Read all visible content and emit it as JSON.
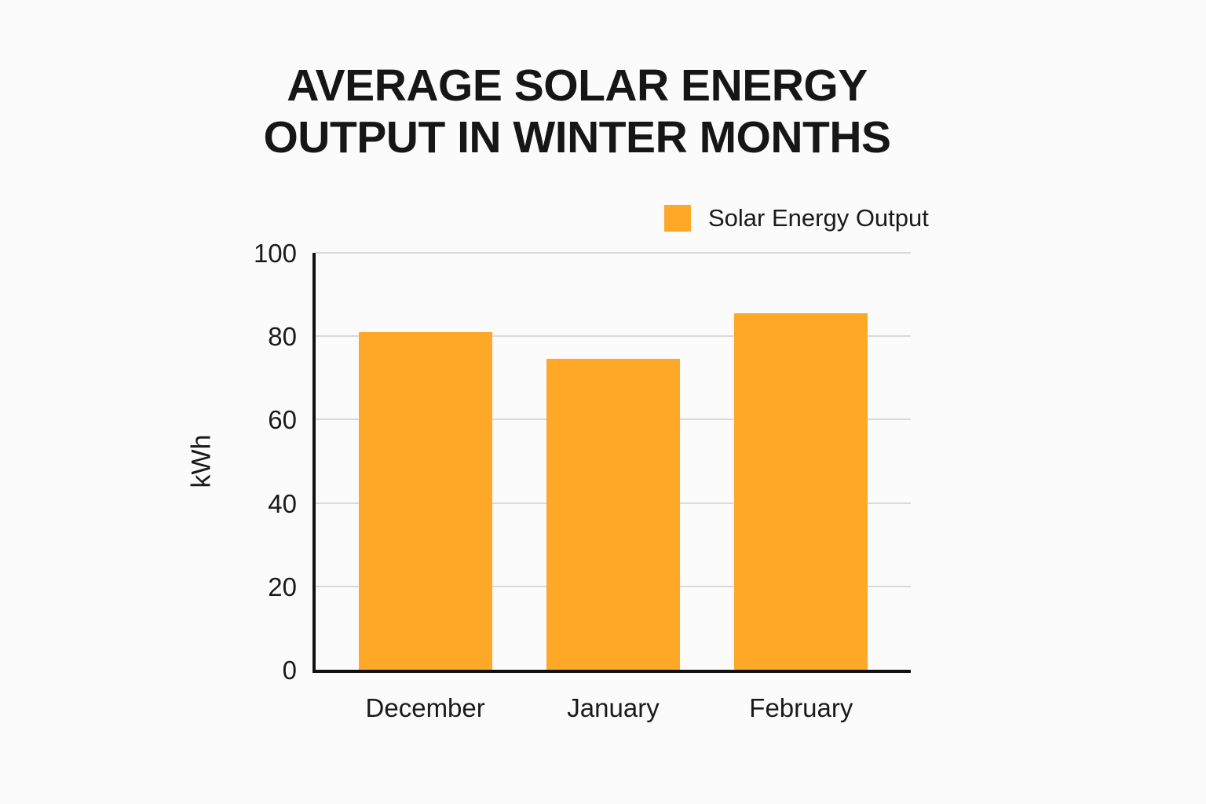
{
  "title": {
    "line1": "AVERAGE SOLAR ENERGY",
    "line2": "OUTPUT IN WINTER MONTHS"
  },
  "legend": {
    "label": "Solar Energy Output",
    "swatch_color": "#ffa726"
  },
  "chart_data": {
    "type": "bar",
    "title": "AVERAGE SOLAR ENERGY OUTPUT IN WINTER MONTHS",
    "categories": [
      "December",
      "January",
      "February"
    ],
    "series": [
      {
        "name": "Solar Energy Output",
        "values": [
          81,
          74.5,
          85.5
        ]
      }
    ],
    "xlabel": "",
    "ylabel": "kWh",
    "ylim": [
      0,
      100
    ],
    "yticks": [
      0,
      20,
      40,
      60,
      80,
      100
    ],
    "grid": true,
    "legend_position": "top-right",
    "bar_color": "#ffa726",
    "gridline_color": "#d9d9d9",
    "axis_color": "#111111"
  }
}
